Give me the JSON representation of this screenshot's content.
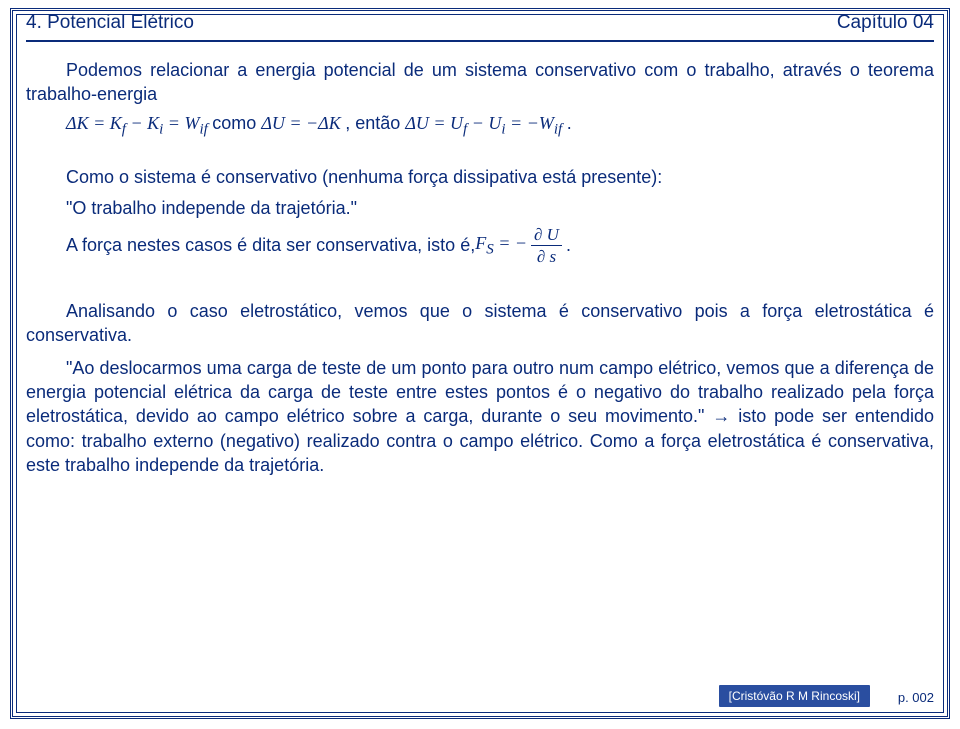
{
  "header": {
    "left": "4. Potencial Elétrico",
    "right": "Capítulo 04"
  },
  "colors": {
    "text": "#0a2b7a",
    "footer_bg": "#2a4ea0",
    "footer_text": "#ffffff",
    "background": "#ffffff"
  },
  "typography": {
    "body_font": "Arial",
    "equation_font": "Times New Roman",
    "body_fontsize_pt": 14,
    "header_fontsize_pt": 15,
    "footer_fontsize_pt": 9
  },
  "paragraphs": {
    "p1_lead": "Podemos relacionar a energia potencial de um sistema conservativo com o trabalho, através o teorema trabalho-energia",
    "eq_dK": "ΔK = K_f − K_i = W_if",
    "eq_como": " como ",
    "eq_dU_eq_negK": "ΔU = −ΔK",
    "eq_entao": ", então ",
    "eq_dU_full": "ΔU = U_f − U_i = −W_if",
    "eq_period": ".",
    "p2": "Como o sistema é conservativo (nenhuma força dissipativa está presente):",
    "q1": "\"O trabalho independe da trajetória.\"",
    "q2_pre": "A força nestes casos é dita ser conservativa, isto é, ",
    "q2_eq_lhs": "F_S = −",
    "q2_frac_num": "∂ U",
    "q2_frac_den": "∂ s",
    "q2_post": " .",
    "p3": "Analisando o caso eletrostático, vemos que o sistema é conservativo pois a força eletrostática é conservativa.",
    "p4_a": "\"Ao deslocarmos uma carga de teste de um ponto para outro num campo elétrico, vemos que a diferença de energia potencial elétrica da carga de teste entre estes pontos é o negativo do trabalho realizado pela força eletrostática, devido ao campo elétrico sobre a carga, durante o seu movimento.\" → isto pode ser entendido como: trabalho externo (negativo) realizado contra o campo elétrico. Como a força eletrostática é conservativa, este trabalho independe da trajetória."
  },
  "equations": {
    "kinetic_work": {
      "type": "inline-equation",
      "text": "ΔK = K_f − K_i = W_if",
      "font": "Times New Roman italic"
    },
    "potential_from_kinetic": {
      "type": "inline-equation",
      "text": "ΔU = −ΔK",
      "font": "Times New Roman italic"
    },
    "potential_work": {
      "type": "inline-equation",
      "text": "ΔU = U_f − U_i = −W_if",
      "font": "Times New Roman italic"
    },
    "conservative_force": {
      "type": "fraction-equation",
      "lhs": "F_S = −",
      "numerator": "∂ U",
      "denominator": "∂ s",
      "font": "Times New Roman italic"
    }
  },
  "footer": {
    "credit": "[Cristóvão R M Rincoski]",
    "page": "p. 002"
  }
}
